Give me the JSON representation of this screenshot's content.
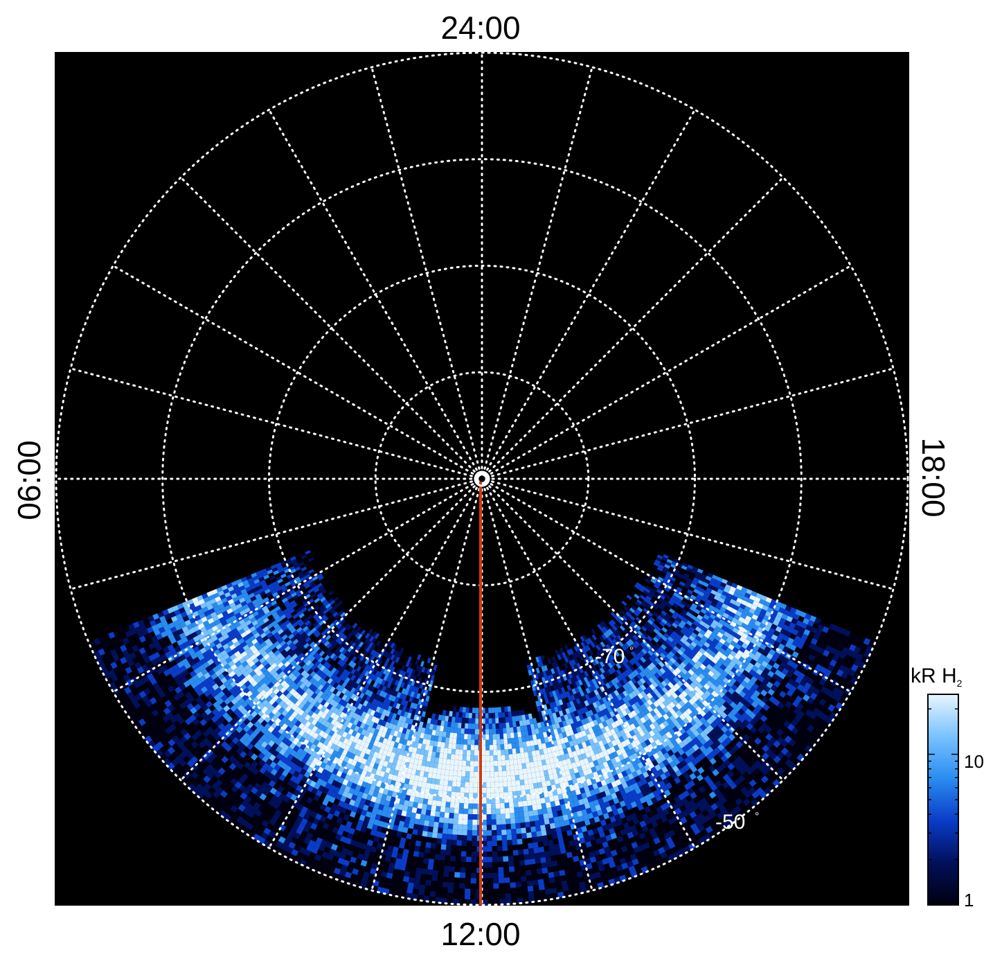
{
  "projection": {
    "type": "polar-stereographic",
    "hemisphere": "south",
    "latitude_circles_deg": [
      -90,
      -80,
      -70,
      -60,
      -50
    ],
    "meridian_step_hours": 1,
    "background_color": "#000000",
    "grid_color": "#ffffff"
  },
  "local_time_labels": {
    "top": "24:00",
    "bottom": "12:00",
    "left": "06:00",
    "right": "18:00"
  },
  "latitude_labels": [
    {
      "text": "-70",
      "degree_mark": "°",
      "latitude_deg": -70
    },
    {
      "text": "-50",
      "degree_mark": "°",
      "latitude_deg": -50
    }
  ],
  "marker_line": {
    "color": "#d03a10",
    "local_time": "12:00",
    "from_latitude_deg": -90,
    "to_latitude_deg": -50
  },
  "colorbar": {
    "title_main": "kR H",
    "title_sub": "2",
    "scale": "log",
    "range": [
      1,
      25
    ],
    "ticks": [
      "10",
      "1"
    ],
    "colors": [
      "#000010",
      "#00105a",
      "#0a3cc8",
      "#2a8cf0",
      "#78c2ff",
      "#e8f6ff"
    ]
  },
  "emission": {
    "description_only_visual": true,
    "coverage_local_time_hours": [
      7.5,
      16.5
    ],
    "coverage_latitude_deg": [
      -73,
      -50
    ],
    "peak_latitude_deg": -62
  }
}
